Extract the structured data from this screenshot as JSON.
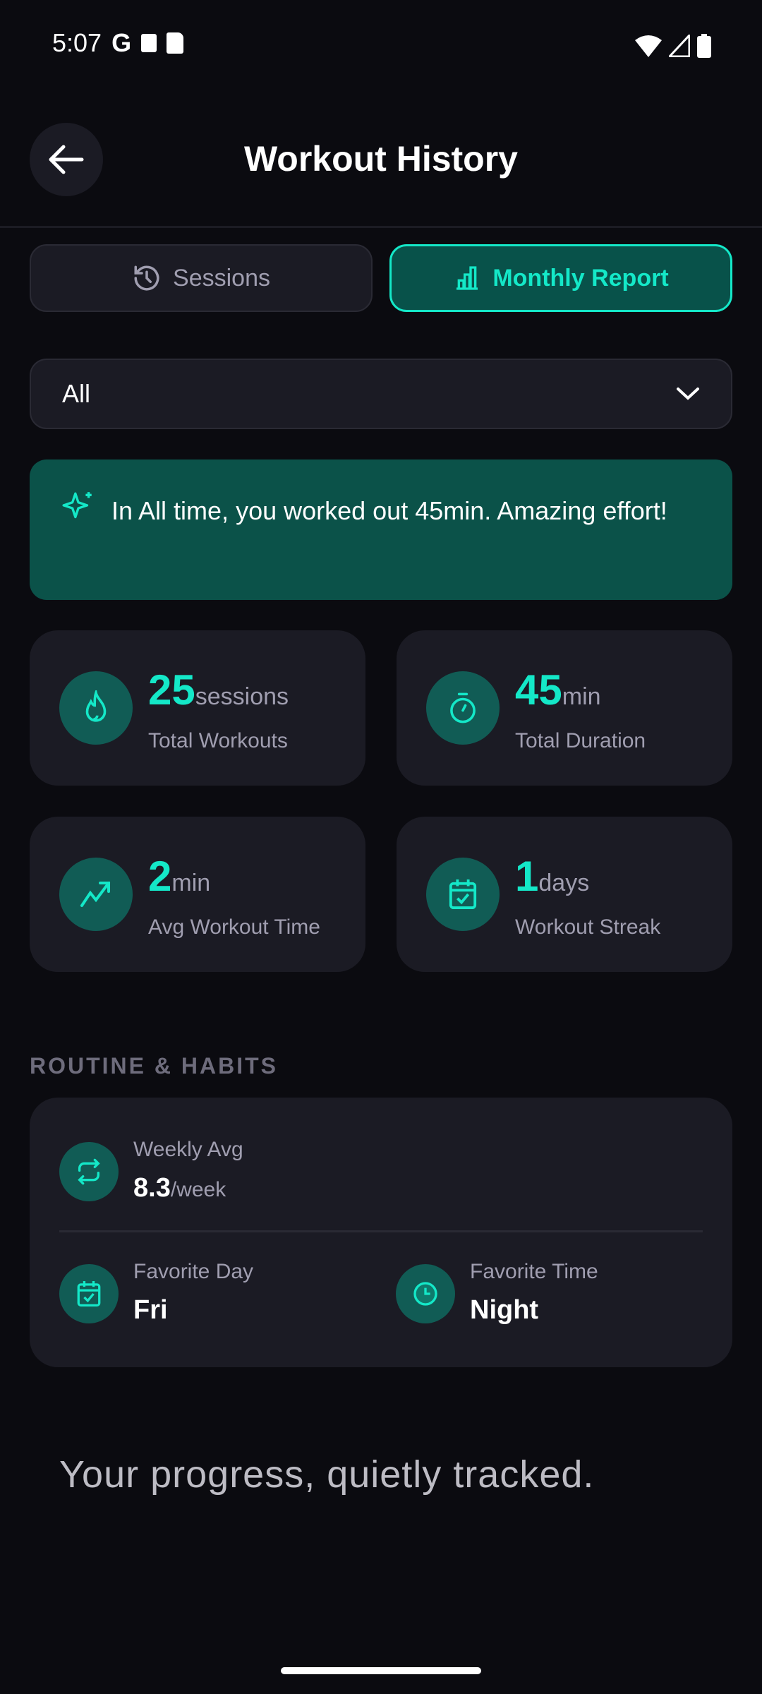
{
  "status_bar": {
    "time": "5:07",
    "icons": [
      "google-icon",
      "accessibility-icon",
      "sd-card-icon",
      "wifi-icon",
      "signal-icon",
      "battery-icon"
    ]
  },
  "header": {
    "title": "Workout History",
    "back_icon": "arrow-left-icon"
  },
  "tabs": [
    {
      "label": "Sessions",
      "icon": "history-icon",
      "active": false
    },
    {
      "label": "Monthly Report",
      "icon": "bar-chart-icon",
      "active": true
    }
  ],
  "filter": {
    "selected": "All"
  },
  "banner": {
    "text": "In All time, you worked out 45min. Amazing effort!",
    "icon": "sparkle-icon"
  },
  "stats": [
    {
      "value": "25",
      "unit": "sessions",
      "label": "Total Workouts",
      "icon": "flame-icon"
    },
    {
      "value": "45",
      "unit": "min",
      "label": "Total Duration",
      "icon": "stopwatch-icon"
    },
    {
      "value": "2",
      "unit": "min",
      "label": "Avg Workout Time",
      "icon": "trending-up-icon"
    },
    {
      "value": "1",
      "unit": "days",
      "label": "Workout Streak",
      "icon": "calendar-check-icon"
    }
  ],
  "routine": {
    "title": "ROUTINE & HABITS",
    "weekly": {
      "label": "Weekly Avg",
      "value": "8.3",
      "unit": "/week"
    },
    "day": {
      "label": "Favorite Day",
      "value": "Fri"
    },
    "time": {
      "label": "Favorite Time",
      "value": "Night"
    }
  },
  "footer": "Your progress, quietly tracked.",
  "colors": {
    "accent": "#14e8c8",
    "background": "#0b0b10",
    "card": "#1b1b24",
    "banner": "#0b5249"
  }
}
